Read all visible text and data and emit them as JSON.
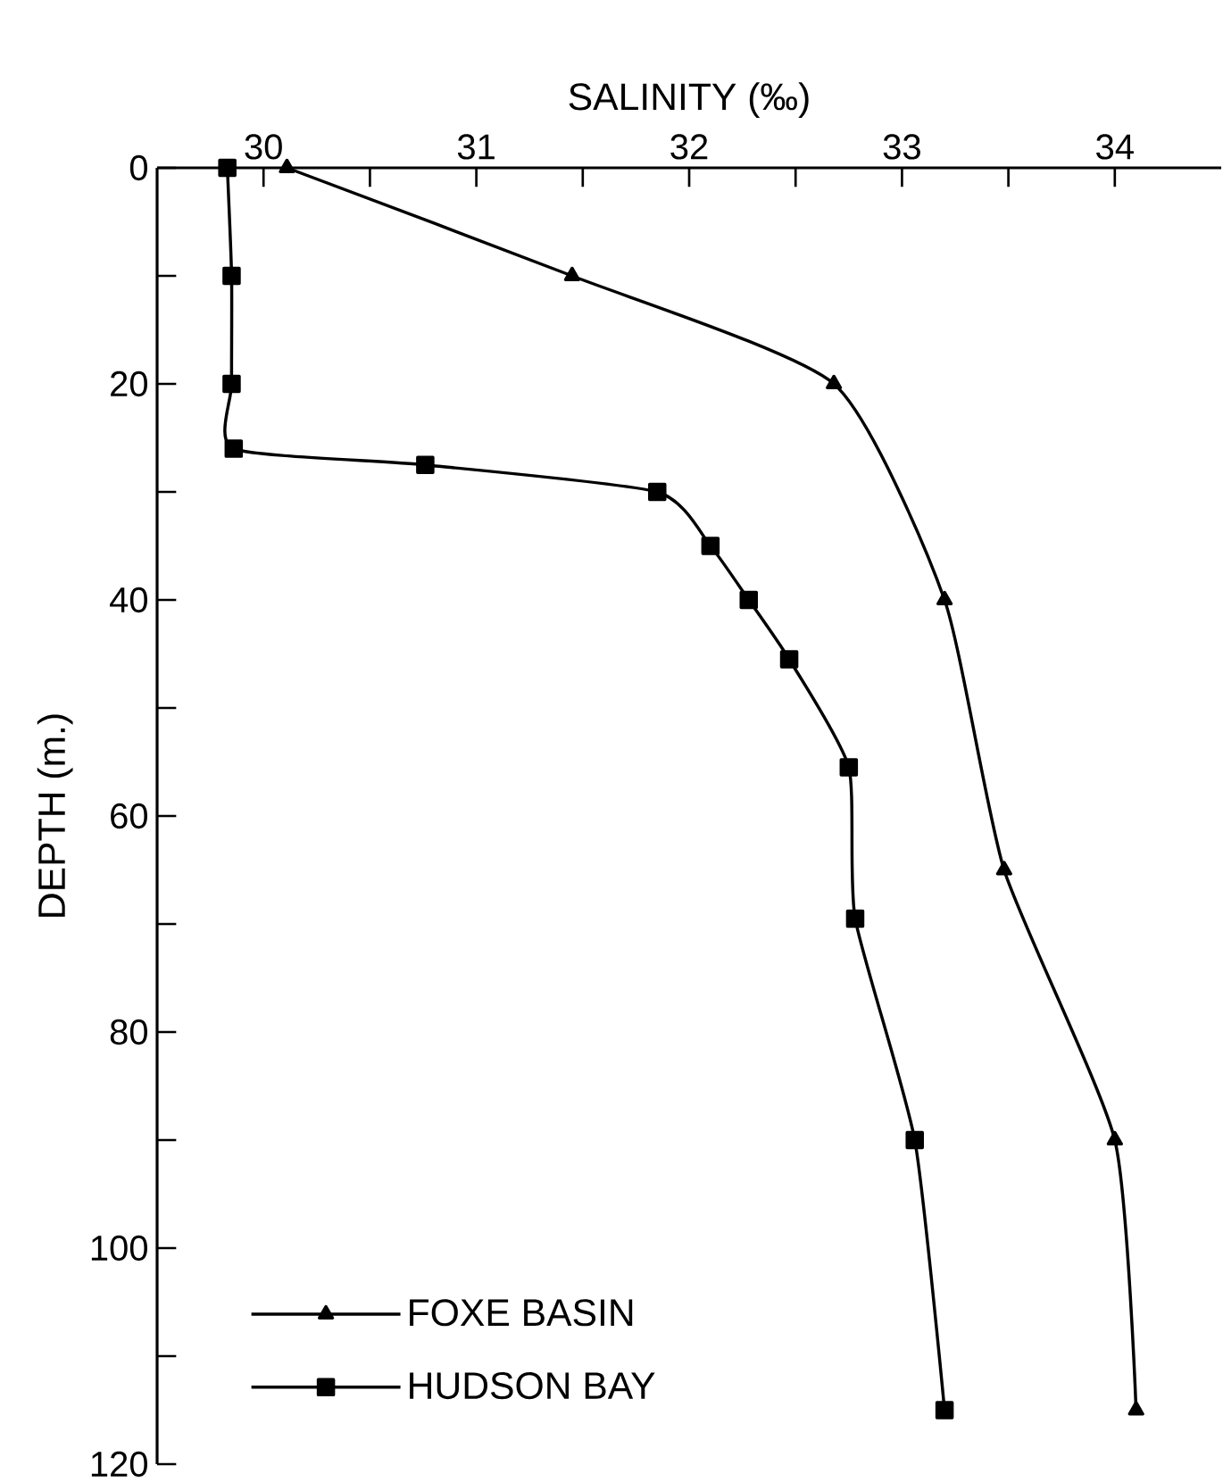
{
  "chart_data": {
    "type": "line",
    "xlabel": "SALINITY  (‰)",
    "ylabel": "DEPTH  (m.)",
    "series": [
      {
        "name": "FOXE BASIN",
        "color": "#000000",
        "marker": "triangle",
        "x": [
          30.11,
          31.45,
          32.68,
          33.2,
          33.48,
          34.0,
          34.1
        ],
        "values": [
          0,
          10,
          20,
          40,
          65,
          90,
          115
        ]
      },
      {
        "name": "HUDSON BAY",
        "color": "#000000",
        "marker": "square",
        "x": [
          29.83,
          29.85,
          29.85,
          29.86,
          30.76,
          31.85,
          32.1,
          32.28,
          32.47,
          32.75,
          32.78,
          33.06,
          33.2
        ],
        "values": [
          0,
          10,
          20,
          26,
          27.5,
          30,
          35,
          40,
          45.5,
          55.5,
          69.5,
          90,
          115
        ]
      }
    ],
    "xlim": [
      29.5,
      34.5
    ],
    "ylim": [
      120,
      0
    ],
    "xticks": [
      30,
      {
        "value": 30.5,
        "label": null
      },
      31,
      {
        "value": 31.5,
        "label": null
      },
      32,
      {
        "value": 32.5,
        "label": null
      },
      33,
      {
        "value": 33.5,
        "label": null
      },
      34
    ],
    "yticks": [
      0,
      {
        "value": 10,
        "label": null
      },
      20,
      {
        "value": 30,
        "label": null
      },
      40,
      {
        "value": 50,
        "label": null
      },
      60,
      {
        "value": 70,
        "label": null
      },
      80,
      {
        "value": 90,
        "label": null
      },
      100,
      {
        "value": 110,
        "label": null
      },
      120
    ],
    "grid": false,
    "legend": "bottom left",
    "line_style": "solid"
  }
}
